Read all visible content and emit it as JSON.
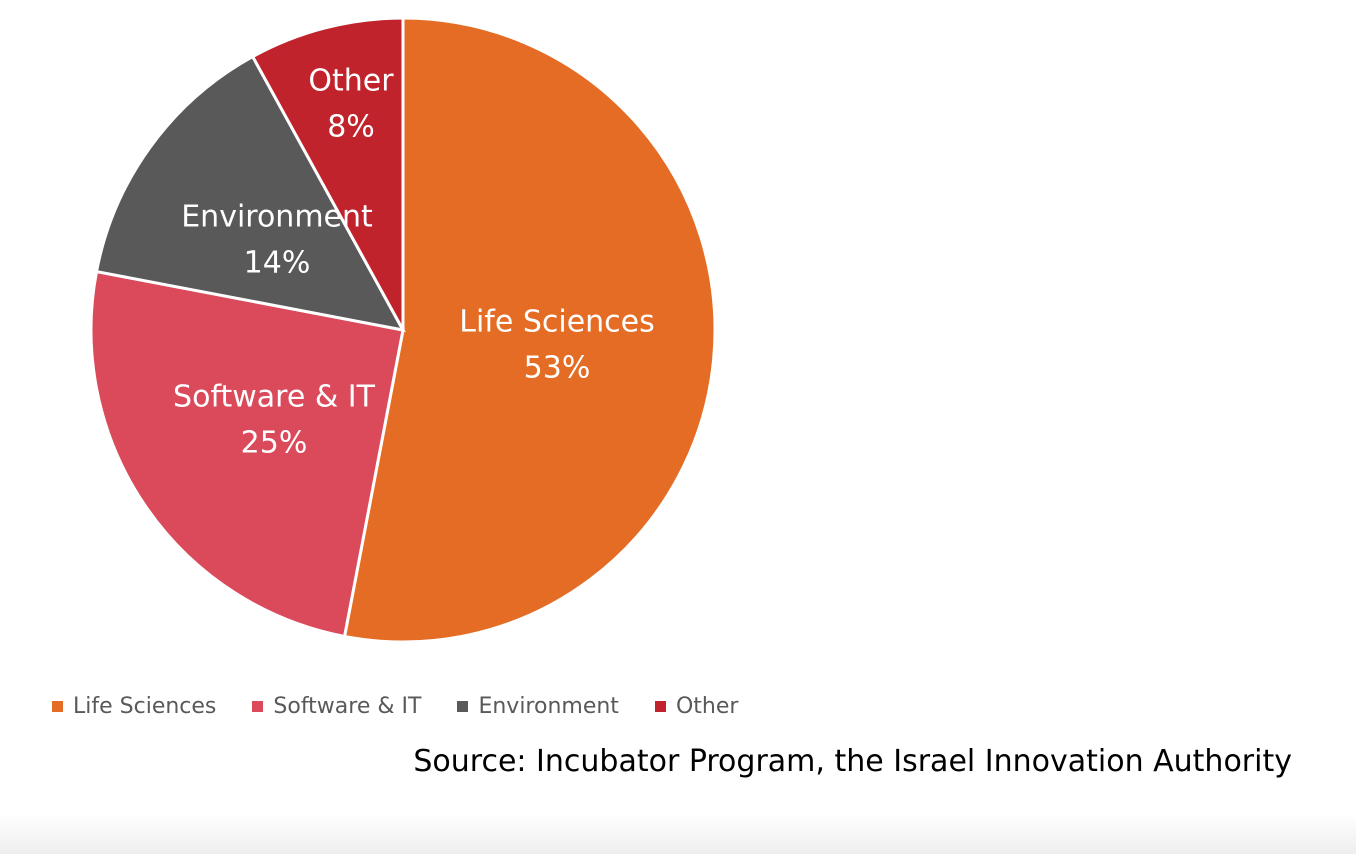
{
  "chart_data": {
    "type": "pie",
    "title": "",
    "categories": [
      "Life Sciences",
      "Software & IT",
      "Environment",
      "Other"
    ],
    "values": [
      53,
      25,
      14,
      8
    ],
    "value_labels": [
      "53%",
      "25%",
      "14%",
      "8%"
    ],
    "colors": [
      "#E46C24",
      "#DA4A5A",
      "#595959",
      "#C0232B"
    ],
    "legend_position": "bottom-left",
    "start_angle": "12 o'clock, clockwise"
  },
  "legend": {
    "items": [
      {
        "label": "Life Sciences",
        "color": "#E46C24"
      },
      {
        "label": "Software & IT",
        "color": "#DA4A5A"
      },
      {
        "label": "Environment",
        "color": "#595959"
      },
      {
        "label": "Other",
        "color": "#C0232B"
      }
    ]
  },
  "source_text": "Source: Incubator Program, the Israel Innovation Authority"
}
